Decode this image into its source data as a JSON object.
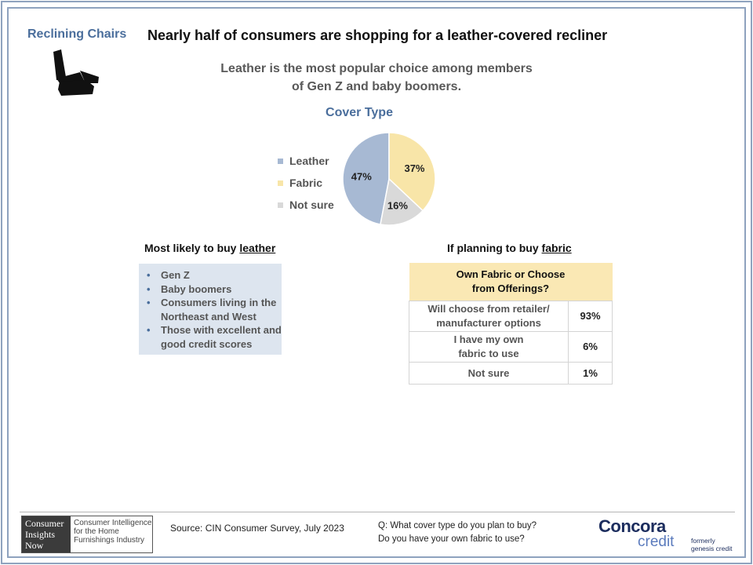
{
  "header": {
    "section_label": "Reclining Chairs",
    "headline": "Nearly half of consumers are shopping  for a leather-covered recliner",
    "subtitle_line1": "Leather is the most popular choice among members",
    "subtitle_line2": "of Gen Z and baby boomers."
  },
  "icons": {
    "chair": "recliner-chair-icon"
  },
  "chart_data": {
    "type": "pie",
    "title": "Cover Type",
    "legend_position": "left",
    "slices": [
      {
        "label": "Leather",
        "value": 47,
        "display": "47%",
        "color": "#a7b9d3"
      },
      {
        "label": "Fabric",
        "value": 37,
        "display": "37%",
        "color": "#f8e5a8"
      },
      {
        "label": "Not sure",
        "value": 16,
        "display": "16%",
        "color": "#d9d9d9"
      }
    ]
  },
  "leather_panel": {
    "title_prefix": "Most likely to buy ",
    "title_underlined": "leather",
    "bullet_char": "•",
    "items": [
      "Gen Z",
      "Baby boomers",
      "Consumers living in the Northeast and West",
      "Those with excellent and good credit scores"
    ]
  },
  "fabric_panel": {
    "title_prefix": "If planning to buy ",
    "title_underlined": "fabric",
    "table_header_line1": "Own Fabric or Choose",
    "table_header_line2": "from Offerings?",
    "rows": [
      {
        "label_line1": "Will choose from retailer/",
        "label_line2": "manufacturer options",
        "value": "93%"
      },
      {
        "label_line1": "I have my own",
        "label_line2": "fabric to use",
        "value": "6%"
      },
      {
        "label_line1": "Not sure",
        "label_line2": "",
        "value": "1%"
      }
    ]
  },
  "footer": {
    "cin_logo_lines": [
      "Consumer",
      "Insights",
      "Now"
    ],
    "cin_tagline_lines": [
      "Consumer Intelligence",
      "for the Home",
      "Furnishings Industry"
    ],
    "source": "Source: CIN Consumer Survey, July 2023",
    "question_line1": "Q: What cover type do you plan to buy?",
    "question_line2": "Do you have your own fabric to use?",
    "brand_name": "Concora",
    "brand_sub": "credit",
    "brand_tag_line1": "formerly",
    "brand_tag_line2": "genesis credit"
  },
  "colors": {
    "accent_blue": "#4a6e9c",
    "frame": "#8ea2be",
    "table_header": "#fae8b4",
    "bullet_bg": "#dde5ef"
  }
}
